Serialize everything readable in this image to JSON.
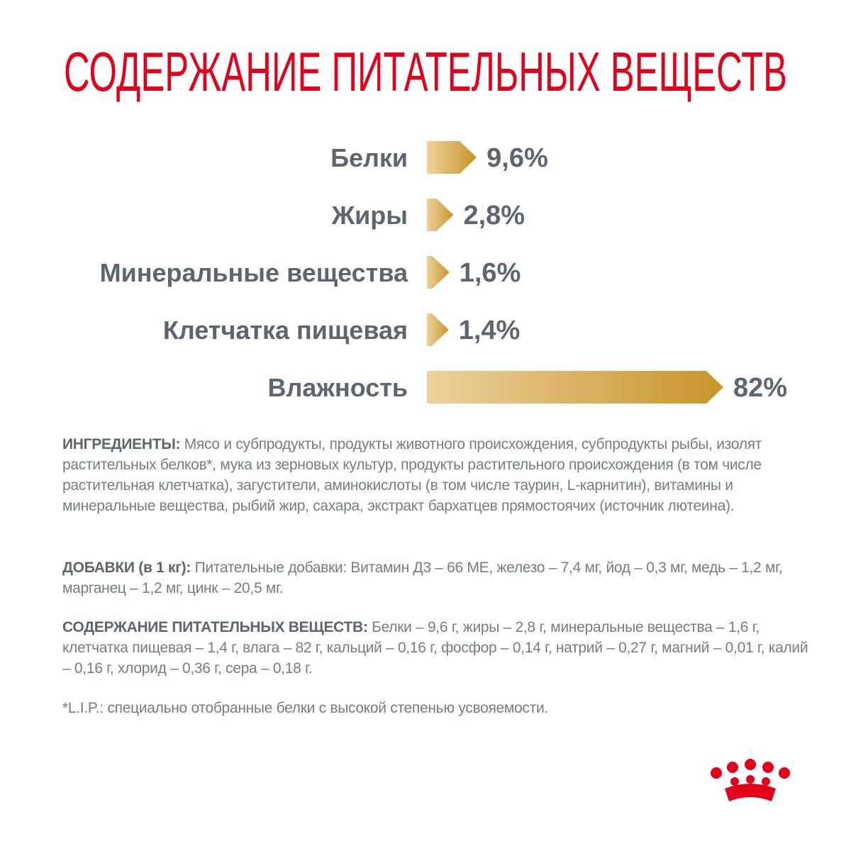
{
  "chart_data": {
    "type": "bar",
    "orientation": "horizontal",
    "title": "СОДЕРЖАНИЕ ПИТАТЕЛЬНЫХ ВЕЩЕСТВ",
    "categories": [
      "Белки",
      "Жиры",
      "Минеральные вещества",
      "Клетчатка пищевая",
      "Влажность"
    ],
    "values": [
      9.6,
      2.8,
      1.6,
      1.4,
      82
    ],
    "value_labels": [
      "9,6%",
      "2,8%",
      "1,6%",
      "1,4%",
      "82%"
    ],
    "color": [
      "#ecd29c",
      "#c8942a"
    ]
  },
  "ingredients": {
    "heading": "ИНГРЕДИЕНТЫ:",
    "text": "Мясо и субпродукты, продукты животного происхождения, субпродукты рыбы, изолят растительных белков*, мука из зерновых культур, продукты растительного происхождения (в том числе растительная клетчатка), загустители, аминокислоты (в том числе таурин, L-карнитин), витамины и минеральные вещества, рыбий жир, сахара, экстракт бархатцев прямостоячих (источник лютеина)."
  },
  "additives": {
    "heading": "ДОБАВКИ (в 1 кг):",
    "text": "Питательные добавки: Витамин Д3 – 66 МЕ, железо – 7,4 мг, йод – 0,3 мг, медь – 1,2 мг, марганец – 1,2 мг, цинк – 20,5 мг."
  },
  "nutrients": {
    "heading": "СОДЕРЖАНИЕ ПИТАТЕЛЬНЫХ ВЕЩЕСТВ:",
    "text": "Белки – 9,6 г, жиры – 2,8 г, минеральные вещества – 1,6 г, клетчатка пищевая – 1,4 г, влага – 82 г, кальций – 0,16 г, фосфор – 0,14 г, натрий – 0,27 г, магний – 0,01 г, калий – 0,16 г, хлорид – 0,36 г, сера – 0,18 г."
  },
  "footnote": "*L.I.P.: специально отобранные белки с высокой степенью усвояемости."
}
